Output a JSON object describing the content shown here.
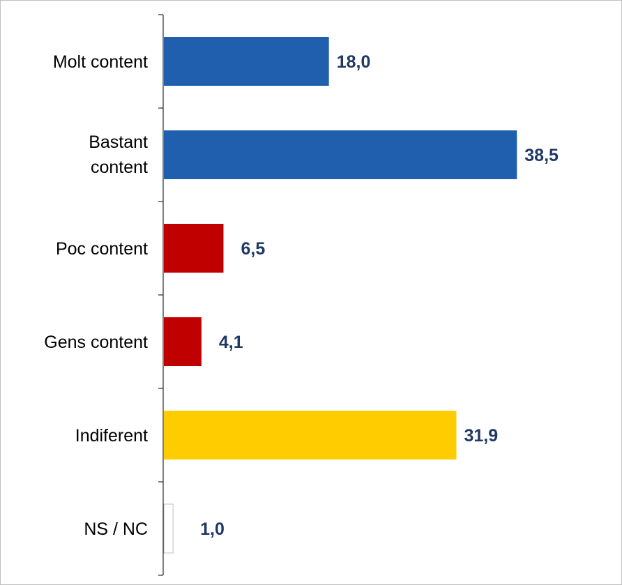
{
  "chart_data": {
    "type": "bar",
    "orientation": "horizontal",
    "categories": [
      "Molt content",
      "Bastant content",
      "Poc content",
      "Gens content",
      "Indiferent",
      "NS / NC"
    ],
    "values": [
      18.0,
      38.5,
      6.5,
      4.1,
      31.9,
      1.0
    ],
    "value_labels": [
      "18,0",
      "38,5",
      "6,5",
      "4,1",
      "31,9",
      "1,0"
    ],
    "bar_colors": [
      "#1f5fae",
      "#1f5fae",
      "#c00000",
      "#c00000",
      "#ffcc00",
      "#ffffff"
    ],
    "xlim": [
      0,
      50
    ],
    "grid": false,
    "legend": "none",
    "title": "",
    "xlabel": "",
    "ylabel": ""
  }
}
